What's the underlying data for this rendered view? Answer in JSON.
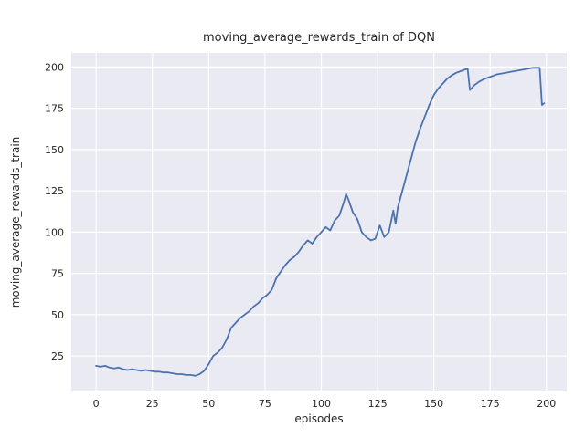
{
  "chart_data": {
    "type": "line",
    "title": "moving_average_rewards_train of DQN",
    "xlabel": "episodes",
    "ylabel": "moving_average_rewards_train",
    "xlim": [
      -11,
      209
    ],
    "ylim": [
      3.5,
      208.5
    ],
    "xticks": [
      0,
      25,
      50,
      75,
      100,
      125,
      150,
      175,
      200
    ],
    "yticks": [
      25,
      50,
      75,
      100,
      125,
      150,
      175,
      200
    ],
    "grid": true,
    "legend": false,
    "line_color": "#4c72b0",
    "plot_background": "#eaeaf2",
    "grid_color": "#ffffff",
    "text_color": "#262626",
    "series": [
      {
        "name": "moving_average_rewards_train",
        "x": [
          0,
          2,
          4,
          6,
          8,
          10,
          12,
          14,
          16,
          18,
          20,
          22,
          24,
          26,
          28,
          30,
          32,
          34,
          36,
          38,
          40,
          42,
          44,
          46,
          48,
          50,
          52,
          54,
          56,
          58,
          60,
          62,
          64,
          66,
          68,
          70,
          72,
          74,
          76,
          78,
          80,
          82,
          84,
          86,
          88,
          90,
          92,
          94,
          96,
          98,
          100,
          102,
          104,
          106,
          108,
          110,
          111,
          112,
          114,
          116,
          118,
          120,
          122,
          124,
          126,
          128,
          130,
          132,
          133,
          134,
          136,
          138,
          140,
          142,
          144,
          146,
          148,
          150,
          152,
          154,
          156,
          158,
          160,
          162,
          164,
          165,
          166,
          168,
          170,
          172,
          174,
          176,
          178,
          180,
          182,
          184,
          186,
          188,
          190,
          192,
          194,
          196,
          197,
          198,
          199
        ],
        "y": [
          19,
          18.5,
          19,
          18,
          17.5,
          18,
          17,
          16.5,
          17,
          16.5,
          16,
          16.5,
          16,
          15.5,
          15.5,
          15,
          15,
          14.5,
          14,
          14,
          13.5,
          13.5,
          13,
          14,
          16,
          20,
          25,
          27,
          30,
          35,
          42,
          45,
          48,
          50,
          52,
          55,
          57,
          60,
          62,
          65,
          72,
          76,
          80,
          83,
          85,
          88,
          92,
          95,
          93,
          97,
          100,
          103,
          101,
          107,
          110,
          118,
          123,
          120,
          112,
          108,
          100,
          97,
          95,
          96,
          104,
          97,
          100,
          113,
          105,
          115,
          125,
          135,
          145,
          155,
          163,
          170,
          177,
          183,
          187,
          190,
          193,
          195,
          196.5,
          197.5,
          198.5,
          199,
          186,
          189,
          191,
          192.5,
          193.5,
          194.5,
          195.5,
          196,
          196.5,
          197,
          197.5,
          198,
          198.5,
          199,
          199.5,
          199.5,
          199.5,
          177,
          178
        ]
      }
    ]
  }
}
